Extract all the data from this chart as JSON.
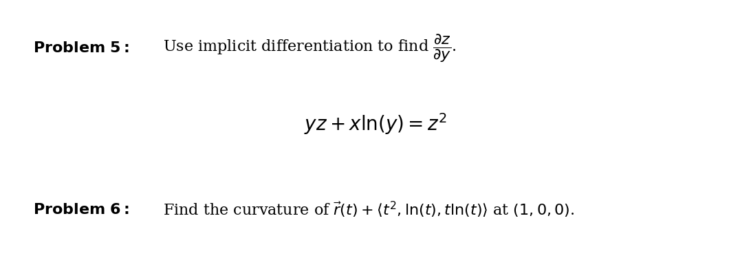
{
  "background_color": "#ffffff",
  "figsize": [
    10.92,
    3.75
  ],
  "dpi": 100,
  "problem5_bold": "Problem 5:",
  "problem5_text": " Use implicit differentiation to find ",
  "problem5_fraction_num": "$\\partial z$",
  "problem5_fraction_den": "$\\partial y$",
  "problem5_period": ".",
  "equation": "$yz + x\\ln(y) = z^2$",
  "problem6_bold": "Problem 6:",
  "problem6_text": " Find the curvature of $\\vec{r}(t) + \\langle t^2, \\ln(t), t\\ln(t)\\rangle$ at $(1, 0, 0)$.",
  "text_color": "#000000",
  "font_size_problem": 16,
  "font_size_equation": 18
}
